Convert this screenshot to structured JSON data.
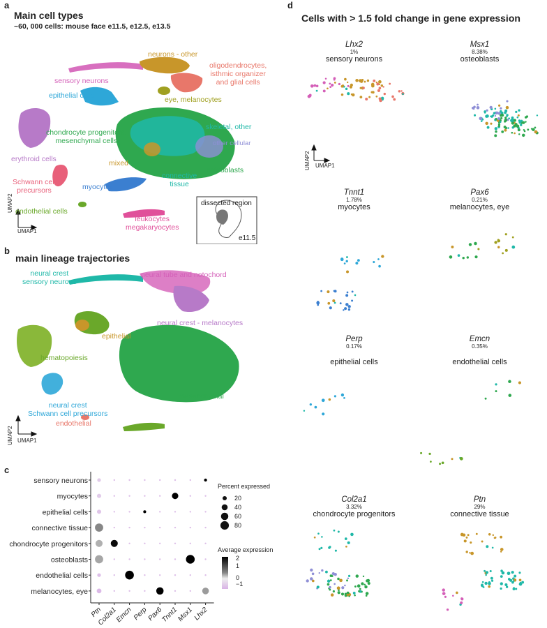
{
  "panel_a": {
    "letter": "a",
    "title": "Main cell types",
    "subtitle": "~60, 000 cells: mouse face e11.5, e12.5, e13.5",
    "axis_y": "UMAP2",
    "axis_x": "UMAP1",
    "inset_title": "dissected region",
    "inset_stage": "e11.5",
    "labels": [
      {
        "text": "neurons - other",
        "color": "#c8962a"
      },
      {
        "text": "oligodendrocytes,\nisthmic organizer\nand glial cells",
        "color": "#e8776a"
      },
      {
        "text": "sensory neurons",
        "color": "#d45fb8"
      },
      {
        "text": "epithelial cells",
        "color": "#2ea7d8"
      },
      {
        "text": "eye, melanocytes",
        "color": "#a0a020"
      },
      {
        "text": "chondrocyte progenitors,\nmesenchymal cells",
        "color": "#2fa84f"
      },
      {
        "text": "skeletal, other",
        "color": "#1fb8a8"
      },
      {
        "text": "other cellular",
        "color": "#8f8fd6"
      },
      {
        "text": "erythroid cells",
        "color": "#b77ac8"
      },
      {
        "text": "mixed",
        "color": "#c8962a"
      },
      {
        "text": "connective\ntissue",
        "color": "#1fb8a8"
      },
      {
        "text": "osteoblasts",
        "color": "#2fa84f"
      },
      {
        "text": "Schwann cell\nprecursors",
        "color": "#e8607a"
      },
      {
        "text": "myocytes",
        "color": "#3b7fd0"
      },
      {
        "text": "endothelial cells",
        "color": "#6aa82a"
      },
      {
        "text": "leukocytes\nmegakaryocytes",
        "color": "#e0509a"
      }
    ]
  },
  "panel_b": {
    "letter": "b",
    "title": "main lineage trajectories",
    "axis_y": "UMAP2",
    "axis_x": "UMAP1",
    "labels": [
      {
        "text": "neural crest\nsensory neurons",
        "color": "#1fb8a8"
      },
      {
        "text": "neural tube and notochord",
        "color": "#d45fb8"
      },
      {
        "text": "neural crest - melanocytes",
        "color": "#b77ac8"
      },
      {
        "text": "epithelial",
        "color": "#c8962a"
      },
      {
        "text": "hematopoiesis",
        "color": "#6aa82a"
      },
      {
        "text": "mesenchymal",
        "color": "#2fa84f"
      },
      {
        "text": "neural crest\nSchwann cell precursors",
        "color": "#2ea7d8"
      },
      {
        "text": "endothelial",
        "color": "#e8776a"
      }
    ]
  },
  "panel_c": {
    "letter": "c",
    "legend_size_title": "Percent expressed",
    "legend_size_values": [
      "20",
      "40",
      "60",
      "80"
    ],
    "legend_color_title": "Average expression",
    "legend_color_ticks": [
      "2",
      "1",
      "0",
      "−1"
    ]
  },
  "panel_d": {
    "letter": "d",
    "title": "Cells with  > 1.5 fold change in gene expression",
    "axis_y": "UMAP2",
    "axis_x": "UMAP1",
    "genes": [
      {
        "gene": "Lhx2",
        "pct": "1%",
        "cell": "sensory neurons"
      },
      {
        "gene": "Msx1",
        "pct": "8.38%",
        "cell": "osteoblasts"
      },
      {
        "gene": "Tnnt1",
        "pct": "1.78%",
        "cell": "myocytes"
      },
      {
        "gene": "Pax6",
        "pct": "0.21%",
        "cell": "melanocytes, eye"
      },
      {
        "gene": "Perp",
        "pct": "0.17%",
        "cell": "epithelial cells"
      },
      {
        "gene": "Emcn",
        "pct": "0.35%",
        "cell": "endothelial cells"
      },
      {
        "gene": "Col2a1",
        "pct": "3.32%",
        "cell": "chondrocyte progenitors"
      },
      {
        "gene": "Ptn",
        "pct": "29%",
        "cell": "connective tissue"
      }
    ]
  },
  "chart_data": {
    "type": "scatter",
    "subtype": "dot plot",
    "categories": [
      "sensory neurons",
      "myocytes",
      "epithelial cells",
      "connective tissue",
      "chondrocyte progenitors",
      "osteoblasts",
      "endothelial cells",
      "melanocytes, eye"
    ],
    "x": [
      "Ptn",
      "Col2a1",
      "Emcn",
      "Perp",
      "Pax6",
      "Tnnt1",
      "Msx1",
      "Lhx2"
    ],
    "series": [
      {
        "name": "Percent expressed",
        "values": [
          [
            15,
            3,
            3,
            3,
            3,
            3,
            3,
            10
          ],
          [
            20,
            3,
            3,
            3,
            3,
            45,
            3,
            3
          ],
          [
            20,
            3,
            3,
            10,
            3,
            3,
            3,
            3
          ],
          [
            75,
            3,
            3,
            3,
            3,
            3,
            3,
            3
          ],
          [
            55,
            55,
            3,
            3,
            3,
            3,
            3,
            3
          ],
          [
            75,
            3,
            3,
            3,
            3,
            3,
            85,
            3
          ],
          [
            15,
            3,
            85,
            3,
            3,
            3,
            3,
            3
          ],
          [
            25,
            3,
            3,
            3,
            60,
            3,
            3,
            50
          ]
        ]
      },
      {
        "name": "Average expression",
        "values": [
          [
            -0.6,
            -0.8,
            -0.8,
            -0.8,
            -0.8,
            -0.8,
            -0.8,
            2.3
          ],
          [
            -0.6,
            -0.8,
            -0.8,
            -0.8,
            -0.8,
            2.3,
            -0.8,
            -0.8
          ],
          [
            -0.7,
            -0.8,
            -0.8,
            2.3,
            -0.8,
            -0.8,
            -0.8,
            -0.8
          ],
          [
            1.0,
            -0.8,
            -0.8,
            -0.8,
            -0.8,
            -0.8,
            -0.8,
            -0.8
          ],
          [
            0.6,
            2.2,
            -0.8,
            -0.8,
            -0.8,
            -0.8,
            -0.8,
            -0.8
          ],
          [
            0.7,
            -0.8,
            -0.8,
            -0.8,
            -0.8,
            -0.8,
            2.3,
            -0.8
          ],
          [
            -0.8,
            -0.8,
            2.3,
            -0.8,
            -0.8,
            -0.8,
            -0.8,
            -0.8
          ],
          [
            -0.9,
            -0.8,
            -0.8,
            -0.8,
            2.3,
            -0.8,
            -0.8,
            0.8
          ]
        ]
      }
    ],
    "legend_size_ticks": [
      20,
      40,
      60,
      80
    ],
    "legend_color_range": [
      -1,
      2
    ],
    "colors": {
      "low": "#d9b3e6",
      "mid": "#eeeeee",
      "high": "#000000"
    }
  }
}
